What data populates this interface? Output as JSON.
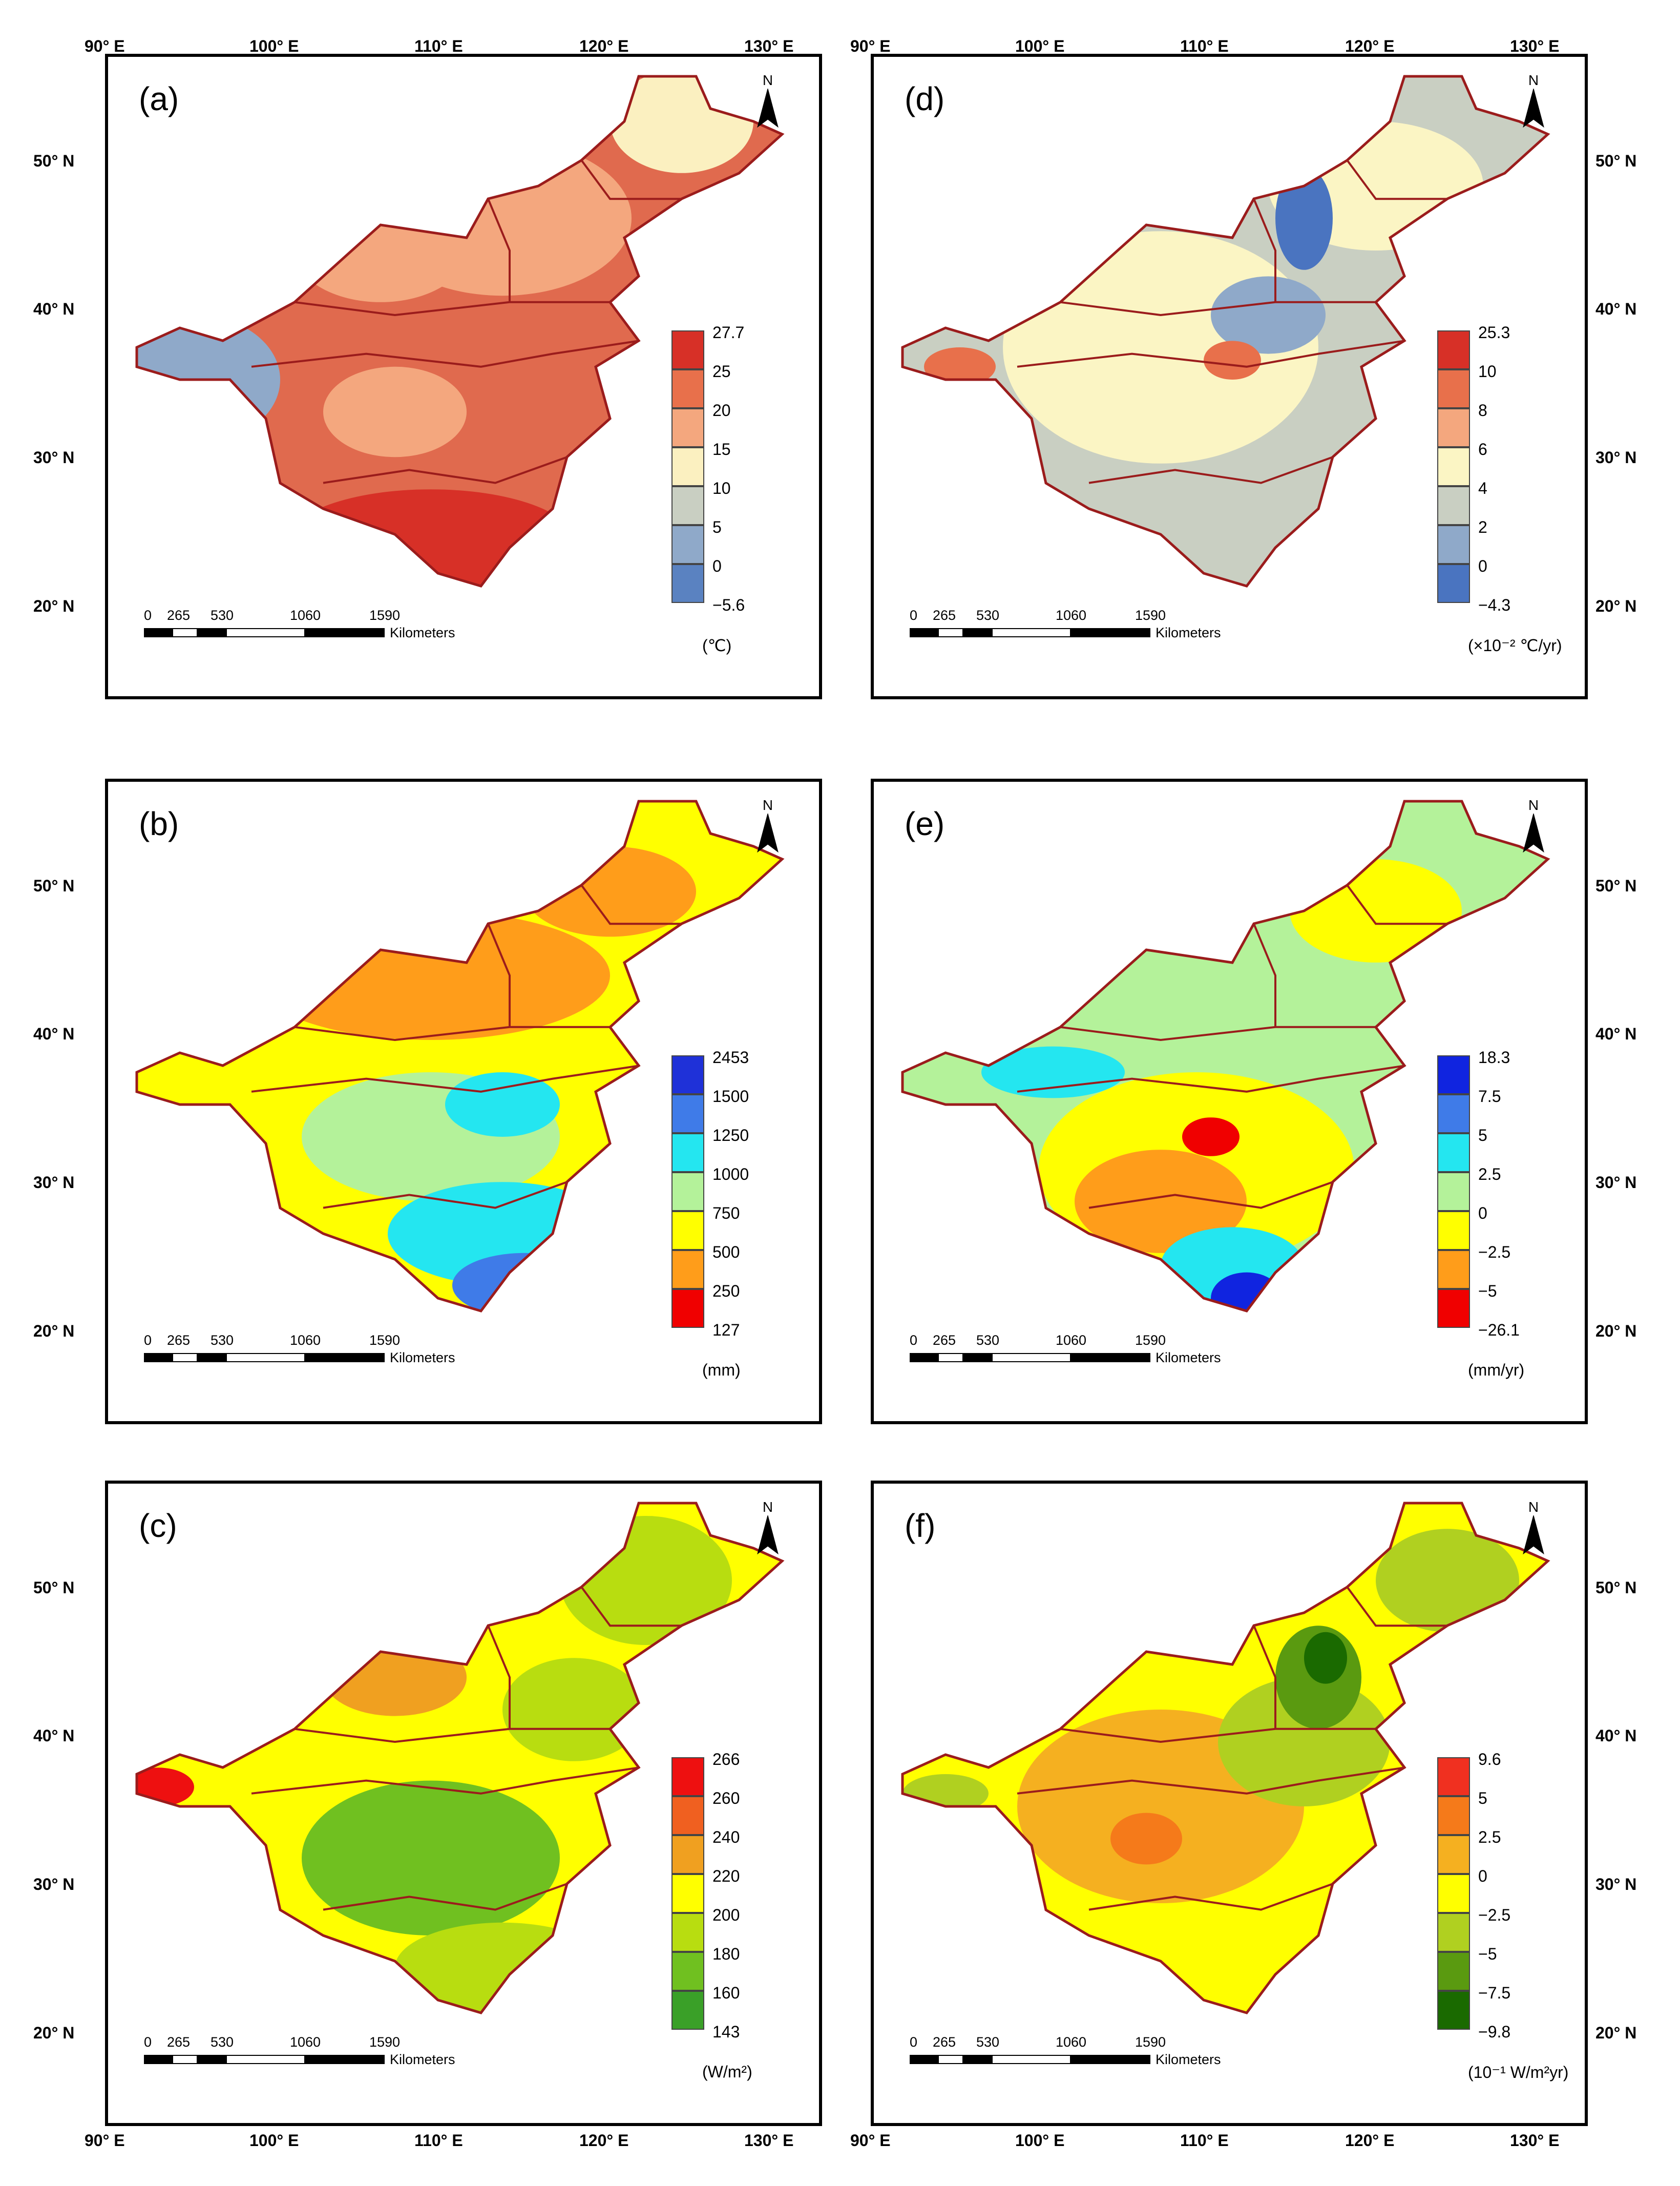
{
  "lon_labels": [
    "90° E",
    "100° E",
    "110° E",
    "120° E",
    "130° E"
  ],
  "lat_labels": [
    "50° N",
    "40° N",
    "30° N",
    "20° N"
  ],
  "scale": {
    "ticks": [
      "0",
      "265",
      "530",
      "1060",
      "1590"
    ],
    "unit": "Kilometers"
  },
  "north_label": "N",
  "panels": [
    {
      "letter": "(a)",
      "unit": "(℃)",
      "legend": [
        "27.7",
        "25",
        "20",
        "15",
        "10",
        "5",
        "0",
        "−5.6"
      ],
      "colors": [
        "#d73027",
        "#e8704b",
        "#f4a77e",
        "#fbf0c0",
        "#c9cfc2",
        "#8fa9c9",
        "#5a82c1"
      ],
      "map": {
        "base": "#e06a4e",
        "blobs": [
          [
            "#f4a77e",
            0.55,
            0.25,
            0.18,
            0.12
          ],
          [
            "#f4a77e",
            0.38,
            0.3,
            0.12,
            0.08
          ],
          [
            "#8fa9c9",
            0.12,
            0.5,
            0.12,
            0.1
          ],
          [
            "#fbf0c0",
            0.8,
            0.1,
            0.1,
            0.08
          ],
          [
            "#d73027",
            0.45,
            0.75,
            0.2,
            0.08
          ],
          [
            "#f4a77e",
            0.4,
            0.55,
            0.1,
            0.07
          ]
        ]
      }
    },
    {
      "letter": "(d)",
      "unit": "(×10⁻² ℃/yr)",
      "legend": [
        "25.3",
        "10",
        "8",
        "6",
        "4",
        "2",
        "0",
        "−4.3"
      ],
      "colors": [
        "#d73027",
        "#e8704b",
        "#f4a77e",
        "#fbf5c4",
        "#c9cfc2",
        "#8fa9c9",
        "#4a74c0"
      ],
      "map": {
        "base": "#c9cfc2",
        "blobs": [
          [
            "#fbf5c4",
            0.4,
            0.45,
            0.22,
            0.18
          ],
          [
            "#fbf5c4",
            0.7,
            0.2,
            0.15,
            0.1
          ],
          [
            "#8fa9c9",
            0.55,
            0.4,
            0.08,
            0.06
          ],
          [
            "#e8704b",
            0.5,
            0.47,
            0.04,
            0.03
          ],
          [
            "#4a74c0",
            0.6,
            0.25,
            0.04,
            0.08
          ],
          [
            "#fbf5c4",
            0.3,
            0.35,
            0.1,
            0.08
          ],
          [
            "#e8704b",
            0.12,
            0.48,
            0.05,
            0.03
          ]
        ]
      }
    },
    {
      "letter": "(b)",
      "unit": "(mm)",
      "legend": [
        "2453",
        "1500",
        "1250",
        "1000",
        "750",
        "500",
        "250",
        "127"
      ],
      "colors": [
        "#1f31d8",
        "#3f7be8",
        "#24e6f0",
        "#b4f29a",
        "#ffff00",
        "#ff9d1a",
        "#f00000"
      ],
      "map": {
        "base": "#ffff00",
        "blobs": [
          [
            "#ff9d1a",
            0.45,
            0.3,
            0.25,
            0.1
          ],
          [
            "#ff9d1a",
            0.7,
            0.17,
            0.12,
            0.07
          ],
          [
            "#b4f29a",
            0.45,
            0.55,
            0.18,
            0.1
          ],
          [
            "#24e6f0",
            0.55,
            0.7,
            0.16,
            0.08
          ],
          [
            "#3f7be8",
            0.58,
            0.78,
            0.1,
            0.05
          ],
          [
            "#f00000",
            0.34,
            0.2,
            0.04,
            0.06
          ],
          [
            "#24e6f0",
            0.55,
            0.5,
            0.08,
            0.05
          ]
        ]
      }
    },
    {
      "letter": "(e)",
      "unit": "(mm/yr)",
      "legend": [
        "18.3",
        "7.5",
        "5",
        "2.5",
        "0",
        "−2.5",
        "−5",
        "−26.1"
      ],
      "colors": [
        "#1024e0",
        "#3f7be8",
        "#24e6f0",
        "#b4f29a",
        "#ffff00",
        "#ff9d1a",
        "#f00000"
      ],
      "map": {
        "base": "#b4f29a",
        "blobs": [
          [
            "#ffff00",
            0.45,
            0.6,
            0.22,
            0.15
          ],
          [
            "#ff9d1a",
            0.4,
            0.65,
            0.12,
            0.08
          ],
          [
            "#24e6f0",
            0.5,
            0.75,
            0.1,
            0.06
          ],
          [
            "#1024e0",
            0.52,
            0.8,
            0.05,
            0.04
          ],
          [
            "#f00000",
            0.47,
            0.55,
            0.04,
            0.03
          ],
          [
            "#ffff00",
            0.7,
            0.2,
            0.12,
            0.08
          ],
          [
            "#24e6f0",
            0.25,
            0.45,
            0.1,
            0.04
          ]
        ]
      }
    },
    {
      "letter": "(c)",
      "unit": "(W/m²)",
      "legend": [
        "266",
        "260",
        "240",
        "220",
        "200",
        "180",
        "160",
        "143"
      ],
      "colors": [
        "#ee1010",
        "#f06020",
        "#f0a020",
        "#ffff00",
        "#b8dd10",
        "#70c020",
        "#3aa028"
      ],
      "map": {
        "base": "#ffff00",
        "blobs": [
          [
            "#70c020",
            0.45,
            0.58,
            0.18,
            0.12
          ],
          [
            "#b8dd10",
            0.75,
            0.15,
            0.12,
            0.1
          ],
          [
            "#f0a020",
            0.4,
            0.3,
            0.1,
            0.06
          ],
          [
            "#ee1010",
            0.07,
            0.47,
            0.05,
            0.03
          ],
          [
            "#b8dd10",
            0.55,
            0.75,
            0.15,
            0.07
          ],
          [
            "#b8dd10",
            0.65,
            0.35,
            0.1,
            0.08
          ]
        ]
      }
    },
    {
      "letter": "(f)",
      "unit": "(10⁻¹ W/m²yr)",
      "legend": [
        "9.6",
        "5",
        "2.5",
        "0",
        "−2.5",
        "−5",
        "−7.5",
        "−9.8"
      ],
      "colors": [
        "#f03020",
        "#f57a1a",
        "#f5b020",
        "#ffff00",
        "#b0d020",
        "#5a9a10",
        "#1a6a00"
      ],
      "map": {
        "base": "#ffff00",
        "blobs": [
          [
            "#f5b020",
            0.4,
            0.5,
            0.2,
            0.15
          ],
          [
            "#b0d020",
            0.6,
            0.4,
            0.12,
            0.1
          ],
          [
            "#5a9a10",
            0.62,
            0.3,
            0.06,
            0.08
          ],
          [
            "#1a6a00",
            0.63,
            0.27,
            0.03,
            0.04
          ],
          [
            "#f57a1a",
            0.38,
            0.55,
            0.05,
            0.04
          ],
          [
            "#b0d020",
            0.8,
            0.15,
            0.1,
            0.08
          ],
          [
            "#b0d020",
            0.1,
            0.48,
            0.06,
            0.03
          ]
        ]
      }
    }
  ]
}
